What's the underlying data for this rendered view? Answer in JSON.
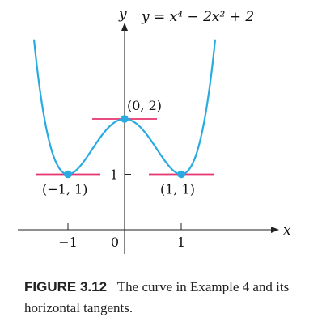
{
  "chart_data": {
    "type": "line",
    "title": "y = x⁴ − 2x² + 2",
    "xlabel": "x",
    "ylabel": "y",
    "xlim": [
      -1.6,
      1.6
    ],
    "ylim": [
      0,
      3.2
    ],
    "function": "x^4 - 2x^2 + 2",
    "x_ticks": [
      {
        "value": -1,
        "label": "−1"
      },
      {
        "value": 0,
        "label": "0"
      },
      {
        "value": 1,
        "label": "1"
      }
    ],
    "y_ticks": [
      {
        "value": 1,
        "label": "1"
      }
    ],
    "series": [
      {
        "x": [
          -1.6,
          -1.5,
          -1.4,
          -1.3,
          -1.2,
          -1.1,
          -1.0,
          -0.9,
          -0.8,
          -0.7,
          -0.6,
          -0.5,
          -0.4,
          -0.3,
          -0.2,
          -0.1,
          0.0,
          0.1,
          0.2,
          0.3,
          0.4,
          0.5,
          0.6,
          0.7,
          0.8,
          0.9,
          1.0,
          1.1,
          1.2,
          1.3,
          1.4,
          1.5,
          1.6
        ],
        "y": [
          3.43,
          2.56,
          1.92,
          1.48,
          1.19,
          1.04,
          1.0,
          1.04,
          1.13,
          1.26,
          1.41,
          1.56,
          1.71,
          1.83,
          1.92,
          1.98,
          2.0,
          1.98,
          1.92,
          1.83,
          1.71,
          1.56,
          1.41,
          1.26,
          1.13,
          1.04,
          1.0,
          1.04,
          1.19,
          1.48,
          1.92,
          2.56,
          3.43
        ]
      }
    ],
    "points": [
      {
        "x": -1,
        "y": 1,
        "label": "(−1, 1)"
      },
      {
        "x": 0,
        "y": 2,
        "label": "(0, 2)"
      },
      {
        "x": 1,
        "y": 1,
        "label": "(1, 1)"
      }
    ],
    "horizontal_tangents": [
      {
        "x": -1,
        "y": 1
      },
      {
        "x": 0,
        "y": 2
      },
      {
        "x": 1,
        "y": 1
      }
    ],
    "colors": {
      "curve": "#29abe2",
      "tangent": "#e8336e",
      "point": "#29abe2",
      "axis": "#222222"
    }
  },
  "caption": {
    "label": "FIGURE 3.12",
    "text": "The curve in Example 4 and its horizontal tangents."
  }
}
